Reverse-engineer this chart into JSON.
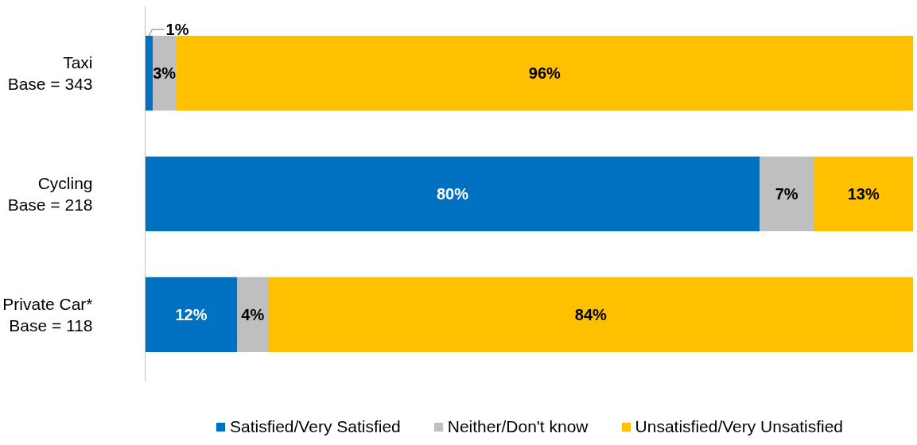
{
  "chart_data": {
    "type": "bar",
    "orientation": "horizontal",
    "stacked": true,
    "legend": "bottom",
    "grid": false,
    "categories": [
      "Taxi\nBase = 343",
      "Cycling\nBase = 218",
      "Private Car*\nBase = 118"
    ],
    "series": [
      {
        "name": "Satisfied/Very Satisfied",
        "color": "#0070c0",
        "values": [
          1,
          80,
          12
        ],
        "value_labels": [
          "1%",
          "80%",
          "12%"
        ]
      },
      {
        "name": "Neither/Don't know",
        "color": "#bfbfbf",
        "values": [
          3,
          7,
          4
        ],
        "value_labels": [
          "3%",
          "7%",
          "4%"
        ]
      },
      {
        "name": "Unsatisfied/Very Unsatisfied",
        "color": "#ffc000",
        "values": [
          96,
          13,
          84
        ],
        "value_labels": [
          "96%",
          "13%",
          "84%"
        ]
      }
    ]
  }
}
